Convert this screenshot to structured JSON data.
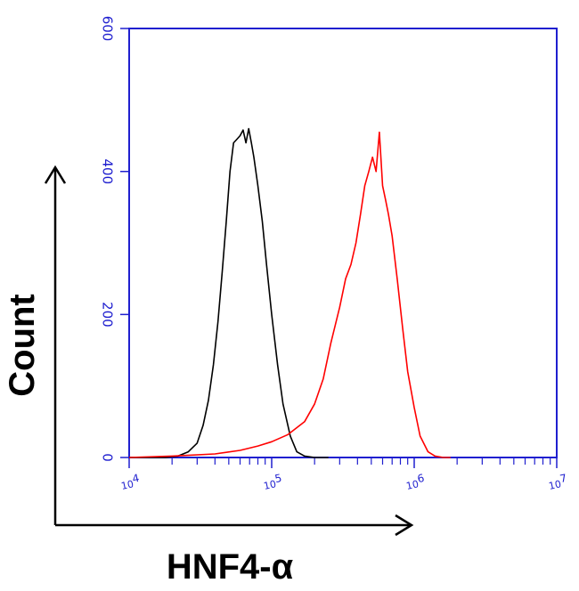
{
  "chart_data": {
    "type": "line",
    "title": "",
    "xlabel": "HNF4-α",
    "ylabel": "Count",
    "x_scale": "log",
    "xlim": [
      10000,
      10000000
    ],
    "ylim": [
      0,
      600
    ],
    "x_ticks": [
      {
        "value": 10000,
        "base": "10",
        "exp": "4"
      },
      {
        "value": 100000,
        "base": "10",
        "exp": "5"
      },
      {
        "value": 1000000,
        "base": "10",
        "exp": "6"
      },
      {
        "value": 10000000,
        "base": "10",
        "exp": "7"
      }
    ],
    "y_ticks": [
      {
        "value": 0,
        "label": "0"
      },
      {
        "value": 200,
        "label": "200"
      },
      {
        "value": 400,
        "label": "400"
      },
      {
        "value": 600,
        "label": "600"
      }
    ],
    "grid": false,
    "legend": "none",
    "series": [
      {
        "color": "#000000",
        "x": [
          10000,
          13000,
          18000,
          22000,
          26000,
          30000,
          33000,
          36000,
          39000,
          42000,
          45000,
          48000,
          51000,
          54000,
          57000,
          60000,
          63000,
          66000,
          69000,
          72000,
          75000,
          80000,
          86000,
          92000,
          100000,
          110000,
          120000,
          135000,
          150000,
          170000,
          200000,
          250000
        ],
        "y": [
          0,
          0,
          0,
          2,
          8,
          20,
          45,
          80,
          130,
          190,
          260,
          330,
          400,
          440,
          445,
          450,
          458,
          440,
          460,
          440,
          420,
          380,
          330,
          270,
          200,
          130,
          75,
          30,
          8,
          2,
          0,
          0
        ]
      },
      {
        "color": "#ff0000",
        "x": [
          10000,
          20000,
          40000,
          60000,
          80000,
          100000,
          130000,
          170000,
          200000,
          230000,
          260000,
          300000,
          330000,
          360000,
          390000,
          420000,
          450000,
          480000,
          510000,
          540000,
          570000,
          600000,
          630000,
          660000,
          700000,
          760000,
          830000,
          900000,
          1000000,
          1100000,
          1250000,
          1400000,
          1600000,
          1800000
        ],
        "y": [
          0,
          2,
          5,
          10,
          16,
          22,
          32,
          50,
          75,
          110,
          160,
          210,
          250,
          270,
          300,
          340,
          380,
          400,
          420,
          400,
          455,
          380,
          360,
          340,
          310,
          250,
          180,
          120,
          70,
          30,
          8,
          2,
          0,
          0
        ]
      }
    ]
  }
}
